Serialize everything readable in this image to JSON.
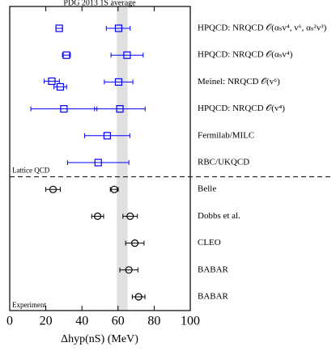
{
  "chart_data": {
    "type": "forest",
    "title": "PDG 2013 1S average",
    "xlabel": "Δhyp(nS) (MeV)",
    "xlim": [
      0,
      100
    ],
    "xticks": [
      0,
      20,
      40,
      60,
      80,
      100
    ],
    "band": {
      "range": [
        59.3,
        65.3
      ],
      "color": "#e0e0e0"
    },
    "groups": [
      {
        "name": "Lattice QCD",
        "color": "#0000ff",
        "marker": "square",
        "rows": [
          {
            "label": "HPQCD: NRQCD 𝒪(αₛv⁴, v⁶, αₛ²v³)",
            "points": [
              {
                "value": 27.4,
                "range": [
                  25.6,
                  29.2
                ]
              },
              {
                "value": 60.3,
                "range": [
                  53.5,
                  66.7
                ]
              }
            ]
          },
          {
            "label": "HPQCD: NRQCD 𝒪(αₛv⁴)",
            "points": [
              {
                "value": 31.4,
                "range": [
                  29.2,
                  33.6
                ]
              },
              {
                "value": 65.0,
                "range": [
                  56.1,
                  73.9
                ]
              }
            ]
          },
          {
            "label": "Meinel: NRQCD 𝒪(v⁶)",
            "points": [
              {
                "value": 23.3,
                "range": [
                  19.1,
                  27.5
                ]
              },
              {
                "value": 28.0,
                "range": [
                  24.5,
                  31.5
                ]
              },
              {
                "value": 60.3,
                "range": [
                  52.4,
                  68.2
                ]
              }
            ]
          },
          {
            "label": "HPQCD: NRQCD 𝒪(v⁴)",
            "points": [
              {
                "value": 30.0,
                "range": [
                  11.7,
                  48.3
                ]
              },
              {
                "value": 61.0,
                "range": [
                  47.0,
                  75.0
                ]
              }
            ]
          },
          {
            "label": "Fermilab/MILC",
            "points": [
              {
                "value": 54.0,
                "range": [
                  41.5,
                  66.5
                ]
              }
            ]
          },
          {
            "label": "RBC/UKQCD",
            "points": [
              {
                "value": 49.0,
                "range": [
                  32.0,
                  66.0
                ]
              }
            ]
          }
        ]
      },
      {
        "name": "Experiment",
        "color": "#000000",
        "marker": "circle",
        "rows": [
          {
            "label": "Belle",
            "points": [
              {
                "value": 24.0,
                "range": [
                  20.0,
                  28.0
                ]
              },
              {
                "value": 57.9,
                "range": [
                  55.7,
                  60.1
                ]
              }
            ]
          },
          {
            "label": "Dobbs et al.",
            "points": [
              {
                "value": 48.7,
                "range": [
                  45.4,
                  52.0
                ]
              },
              {
                "value": 66.7,
                "range": [
                  62.7,
                  70.7
                ]
              }
            ]
          },
          {
            "label": "CLEO",
            "points": [
              {
                "value": 69.3,
                "range": [
                  64.2,
                  74.4
                ]
              }
            ]
          },
          {
            "label": "BABAR",
            "points": [
              {
                "value": 66.0,
                "range": [
                  61.0,
                  71.0
                ]
              }
            ]
          },
          {
            "label": "BABAR",
            "points": [
              {
                "value": 71.4,
                "range": [
                  67.9,
                  74.9
                ]
              }
            ]
          }
        ]
      }
    ]
  }
}
